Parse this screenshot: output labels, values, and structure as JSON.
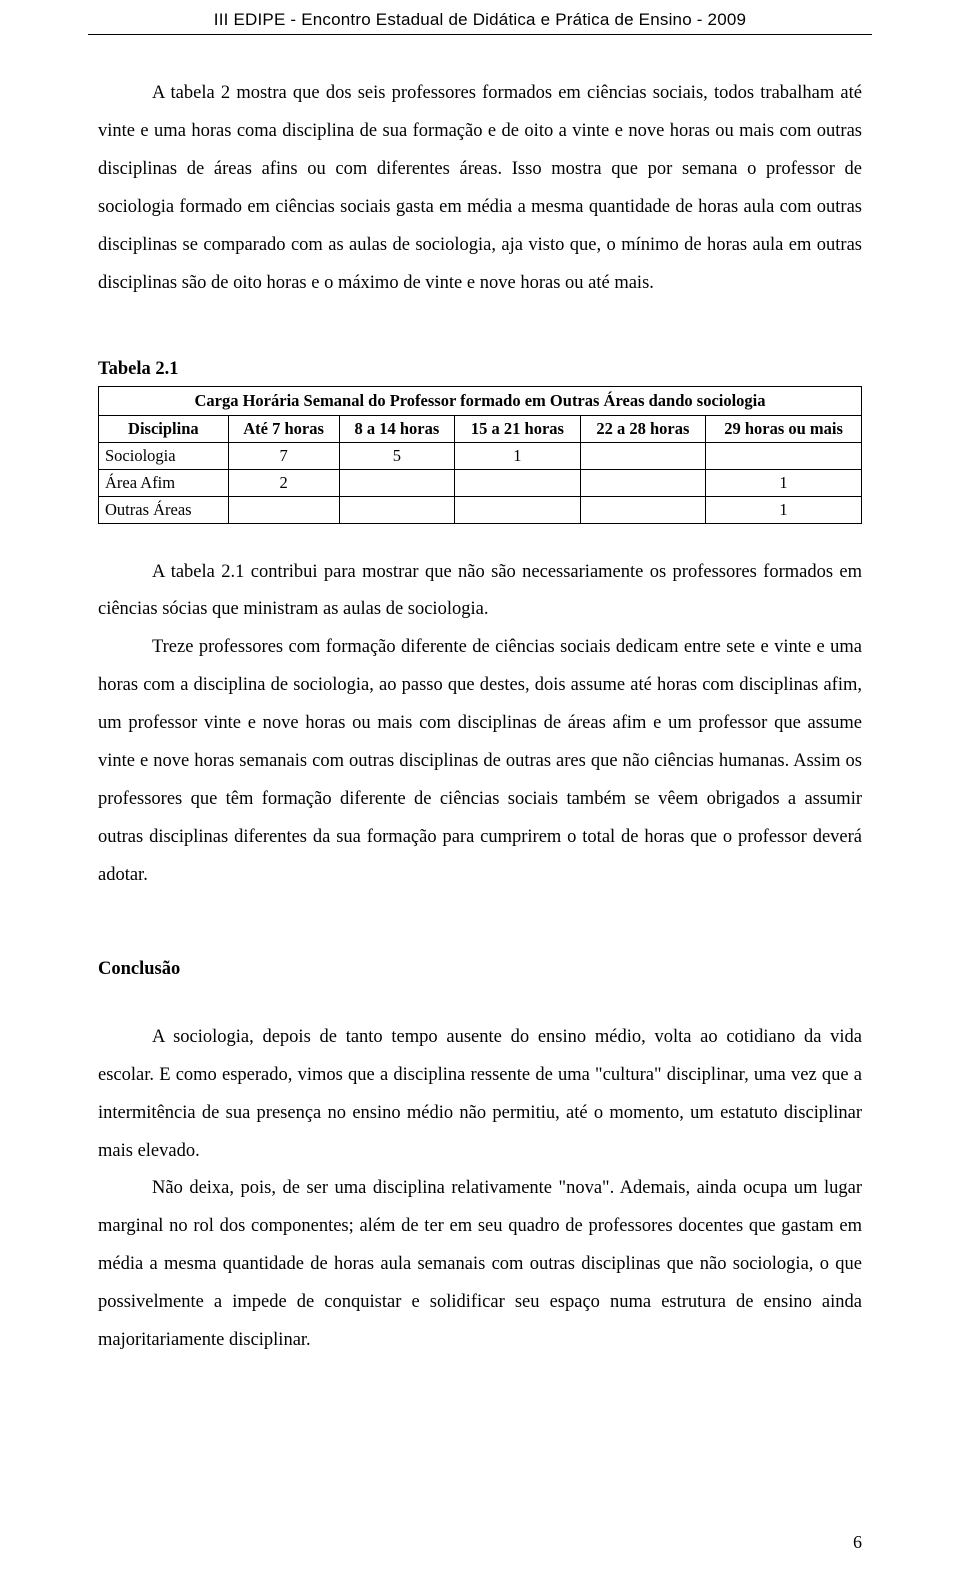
{
  "header": "III EDIPE  -  Encontro Estadual de Didática e Prática de Ensino  -  2009",
  "para1": "A tabela 2 mostra que dos seis professores formados em ciências sociais, todos trabalham até vinte e uma horas coma disciplina de sua formação e de oito a vinte e nove horas ou mais com outras disciplinas de áreas afins ou com diferentes áreas. Isso mostra que por semana o professor de sociologia formado em ciências sociais gasta em média a mesma quantidade de horas aula com outras disciplinas se comparado com as aulas de sociologia, aja visto que, o mínimo de horas aula em outras disciplinas são de oito horas e o máximo de vinte e nove horas ou até mais.",
  "table": {
    "label": "Tabela 2.1",
    "title": "Carga Horária Semanal do Professor formado em Outras Áreas dando sociologia",
    "columns": [
      "Disciplina",
      "Até 7 horas",
      "8 a 14 horas",
      "15 a 21 horas",
      "22 a 28 horas",
      "29 horas ou mais"
    ],
    "rows": [
      {
        "label": "Sociologia",
        "c1": "7",
        "c2": "5",
        "c3": "1",
        "c4": "",
        "c5": ""
      },
      {
        "label": "Área Afim",
        "c1": "2",
        "c2": "",
        "c3": "",
        "c4": "",
        "c5": "1"
      },
      {
        "label": "Outras Áreas",
        "c1": "",
        "c2": "",
        "c3": "",
        "c4": "",
        "c5": "1"
      }
    ]
  },
  "para2": "A tabela 2.1 contribui para mostrar que não são necessariamente os professores formados em ciências sócias que ministram as aulas de sociologia.",
  "para3": "Treze professores com formação diferente de ciências sociais dedicam entre sete e vinte e uma horas com a disciplina de sociologia, ao passo que destes, dois assume até horas com disciplinas afim, um professor vinte e nove horas ou mais com disciplinas de áreas afim e um professor que assume vinte e nove horas semanais com outras disciplinas de outras ares que não ciências humanas. Assim os professores que têm formação diferente de ciências sociais também se vêem obrigados a assumir outras disciplinas diferentes da sua formação para cumprirem o total de horas que o professor deverá adotar.",
  "conclusionHeading": "Conclusão",
  "para4": "A sociologia, depois de tanto tempo ausente do ensino médio, volta ao cotidiano da vida escolar. E como esperado, vimos que a disciplina ressente de uma \"cultura\" disciplinar, uma vez que a intermitência de sua presença no ensino médio não permitiu, até o momento, um estatuto disciplinar mais elevado.",
  "para5": "Não deixa, pois, de ser uma disciplina relativamente \"nova\". Ademais, ainda ocupa um lugar marginal no rol dos componentes; além de ter em seu quadro de professores docentes que gastam em média a mesma quantidade de horas aula semanais com outras disciplinas que não sociologia, o que possivelmente a impede de conquistar e solidificar seu espaço numa estrutura de ensino ainda majoritariamente disciplinar.",
  "pageNumber": "6"
}
